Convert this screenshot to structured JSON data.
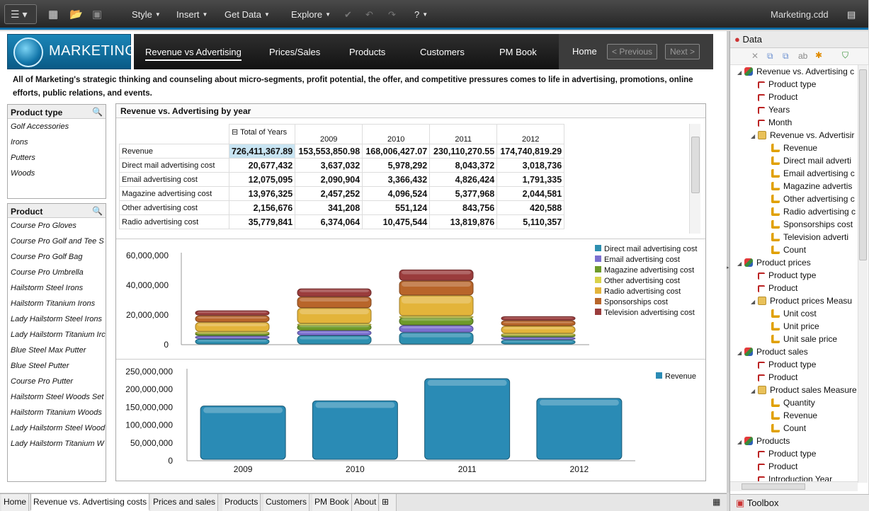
{
  "app": {
    "filename": "Marketing.cdd",
    "menu": [
      "Style",
      "Insert",
      "Get Data",
      "Explore"
    ]
  },
  "banner": {
    "logo_text": "MARKETING",
    "tabs": [
      "Revenue vs Advertising",
      "Prices/Sales",
      "Products",
      "Customers",
      "PM Book"
    ],
    "home": "Home",
    "previous": "< Previous",
    "next": "Next >"
  },
  "description": "All of Marketing's strategic thinking and counseling about micro-segments, profit potential, the offer, and competitive pressures comes to life in advertising, promotions, online efforts, public relations, and events.",
  "filters": {
    "product_type": {
      "title": "Product type",
      "items": [
        "Golf Accessories",
        "Irons",
        "Putters",
        "Woods"
      ]
    },
    "product": {
      "title": "Product",
      "items": [
        "Course Pro Gloves",
        "Course Pro Golf and Tee S",
        "Course Pro Golf Bag",
        "Course Pro Umbrella",
        "Hailstorm Steel Irons",
        "Hailstorm Titanium Irons",
        "Lady Hailstorm Steel Irons",
        "Lady Hailstorm Titanium Irc",
        "Blue Steel Max Putter",
        "Blue Steel Putter",
        "Course Pro Putter",
        "Hailstorm Steel Woods Set",
        "Hailstorm Titanium Woods",
        "Lady Hailstorm Steel Wood",
        "Lady Hailstorm Titanium W"
      ]
    }
  },
  "panel": {
    "title": "Revenue vs. Advertising by year",
    "table": {
      "total_header": "Total of Years",
      "years": [
        "2009",
        "2010",
        "2011",
        "2012"
      ],
      "rows": [
        {
          "label": "Revenue",
          "values": [
            "726,411,367.89",
            "153,553,850.98",
            "168,006,427.07",
            "230,110,270.55",
            "174,740,819.29"
          ]
        },
        {
          "label": "Direct mail advertising cost",
          "values": [
            "20,677,432",
            "3,637,032",
            "5,978,292",
            "8,043,372",
            "3,018,736"
          ]
        },
        {
          "label": "Email advertising cost",
          "values": [
            "12,075,095",
            "2,090,904",
            "3,366,432",
            "4,826,424",
            "1,791,335"
          ]
        },
        {
          "label": "Magazine advertising cost",
          "values": [
            "13,976,325",
            "2,457,252",
            "4,096,524",
            "5,377,968",
            "2,044,581"
          ]
        },
        {
          "label": "Other advertising cost",
          "values": [
            "2,156,676",
            "341,208",
            "551,124",
            "843,756",
            "420,588"
          ]
        },
        {
          "label": "Radio advertising cost",
          "values": [
            "35,779,841",
            "6,374,064",
            "10,475,544",
            "13,819,876",
            "5,110,357"
          ]
        }
      ]
    }
  },
  "chart_data": [
    {
      "type": "bar",
      "stacked": true,
      "categories": [
        "2009",
        "2010",
        "2011",
        "2012"
      ],
      "ylim": [
        0,
        60000000
      ],
      "yticks": [
        "0",
        "20,000,000",
        "40,000,000",
        "60,000,000"
      ],
      "legend_position": "right",
      "series": [
        {
          "name": "Direct mail advertising cost",
          "color": "#2d8fb0",
          "values": [
            3637032,
            5978292,
            8043372,
            3018736
          ]
        },
        {
          "name": "Email advertising cost",
          "color": "#7b6fd0",
          "values": [
            2090904,
            3366432,
            4826424,
            1791335
          ]
        },
        {
          "name": "Magazine advertising cost",
          "color": "#6e9a2a",
          "values": [
            2457252,
            4096524,
            5377968,
            2044581
          ]
        },
        {
          "name": "Other advertising cost",
          "color": "#d9d24a",
          "values": [
            341208,
            551124,
            843756,
            420588
          ]
        },
        {
          "name": "Radio advertising cost",
          "color": "#e3b43a",
          "values": [
            6374064,
            10475544,
            13819876,
            5110357
          ]
        },
        {
          "name": "Sponsorships cost",
          "color": "#b8652a",
          "values": [
            4500000,
            7500000,
            9900000,
            3700000
          ]
        },
        {
          "name": "Television advertising cost",
          "color": "#9a3c3c",
          "values": [
            3400000,
            5600000,
            7500000,
            2800000
          ]
        }
      ]
    },
    {
      "type": "bar",
      "categories": [
        "2009",
        "2010",
        "2011",
        "2012"
      ],
      "ylim": [
        0,
        250000000
      ],
      "yticks": [
        "0",
        "50,000,000",
        "100,000,000",
        "150,000,000",
        "200,000,000",
        "250,000,000"
      ],
      "legend_position": "top-right",
      "series": [
        {
          "name": "Revenue",
          "color": "#2a8bb5",
          "values": [
            153553850.98,
            168006427.07,
            230110270.55,
            174740819.29
          ]
        }
      ]
    }
  ],
  "bottom_tabs": [
    "Home",
    "Revenue vs. Advertising costs",
    "Prices and sales",
    "Products",
    "Customers",
    "PM Book",
    "About"
  ],
  "right_panel": {
    "title": "Data",
    "toolbox": "Toolbox",
    "tree": [
      {
        "level": 0,
        "icon": "cube",
        "label": "Revenue vs. Advertising c",
        "expanded": true
      },
      {
        "level": 1,
        "icon": "hier",
        "label": "Product type"
      },
      {
        "level": 1,
        "icon": "hier",
        "label": "Product"
      },
      {
        "level": 1,
        "icon": "hier",
        "label": "Years"
      },
      {
        "level": 1,
        "icon": "hier",
        "label": "Month"
      },
      {
        "level": 1,
        "icon": "folder",
        "label": "Revenue vs. Advertisir",
        "expanded": true
      },
      {
        "level": 2,
        "icon": "meas",
        "label": "Revenue"
      },
      {
        "level": 2,
        "icon": "meas",
        "label": "Direct mail adverti"
      },
      {
        "level": 2,
        "icon": "meas",
        "label": "Email advertising c"
      },
      {
        "level": 2,
        "icon": "meas",
        "label": "Magazine advertis"
      },
      {
        "level": 2,
        "icon": "meas",
        "label": "Other advertising c"
      },
      {
        "level": 2,
        "icon": "meas",
        "label": "Radio advertising c"
      },
      {
        "level": 2,
        "icon": "meas",
        "label": "Sponsorships cost"
      },
      {
        "level": 2,
        "icon": "meas",
        "label": "Television adverti"
      },
      {
        "level": 2,
        "icon": "meas",
        "label": "Count"
      },
      {
        "level": 0,
        "icon": "cube",
        "label": "Product prices",
        "expanded": true
      },
      {
        "level": 1,
        "icon": "hier",
        "label": "Product type"
      },
      {
        "level": 1,
        "icon": "hier",
        "label": "Product"
      },
      {
        "level": 1,
        "icon": "folder",
        "label": "Product prices Measu",
        "expanded": true
      },
      {
        "level": 2,
        "icon": "meas",
        "label": "Unit cost"
      },
      {
        "level": 2,
        "icon": "meas",
        "label": "Unit price"
      },
      {
        "level": 2,
        "icon": "meas",
        "label": "Unit sale price"
      },
      {
        "level": 0,
        "icon": "cube",
        "label": "Product sales",
        "expanded": true
      },
      {
        "level": 1,
        "icon": "hier",
        "label": "Product type"
      },
      {
        "level": 1,
        "icon": "hier",
        "label": "Product"
      },
      {
        "level": 1,
        "icon": "folder",
        "label": "Product sales Measure",
        "expanded": true
      },
      {
        "level": 2,
        "icon": "meas",
        "label": "Quantity"
      },
      {
        "level": 2,
        "icon": "meas",
        "label": "Revenue"
      },
      {
        "level": 2,
        "icon": "meas",
        "label": "Count"
      },
      {
        "level": 0,
        "icon": "cube",
        "label": "Products",
        "expanded": true
      },
      {
        "level": 1,
        "icon": "hier",
        "label": "Product type"
      },
      {
        "level": 1,
        "icon": "hier",
        "label": "Product"
      },
      {
        "level": 1,
        "icon": "hier",
        "label": "Introduction Year"
      }
    ]
  }
}
